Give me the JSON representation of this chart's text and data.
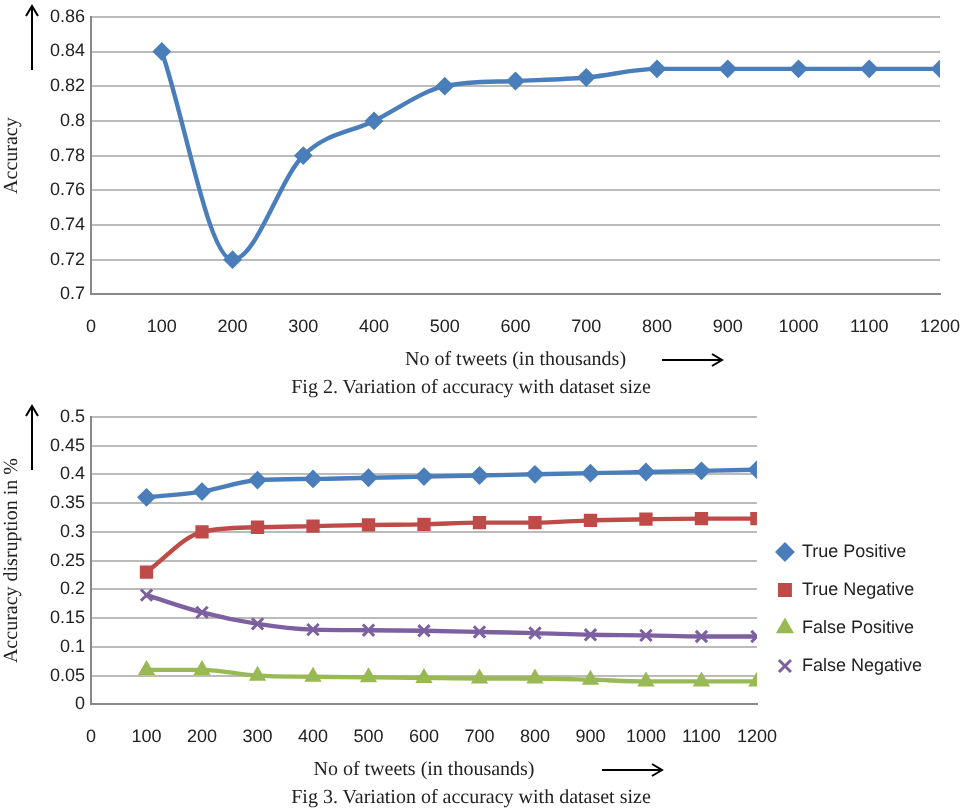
{
  "chart_data": [
    {
      "type": "line",
      "title": "Fig 2. Variation of accuracy with dataset size",
      "xlabel": "No of tweets (in thousands)",
      "ylabel": "Accuracy",
      "x": [
        100,
        200,
        300,
        400,
        500,
        600,
        700,
        800,
        900,
        1000,
        1100,
        1200
      ],
      "series": [
        {
          "color": "#4a7ebb",
          "values": [
            0.84,
            0.72,
            0.78,
            0.8,
            0.82,
            0.823,
            0.825,
            0.83,
            0.83,
            0.83,
            0.83,
            0.83
          ]
        }
      ],
      "xlim": [
        0,
        1200
      ],
      "xticks": [
        0,
        100,
        200,
        300,
        400,
        500,
        600,
        700,
        800,
        900,
        1000,
        1100,
        1200
      ],
      "ylim": [
        0.7,
        0.86
      ],
      "yticks": [
        0.7,
        0.72,
        0.74,
        0.76,
        0.78,
        0.8,
        0.82,
        0.84,
        0.86
      ],
      "grid": "y",
      "legend": false,
      "marker": "diamond"
    },
    {
      "type": "line",
      "title": "Fig 3. Variation of accuracy with dataset size",
      "xlabel": "No of tweets (in thousands)",
      "ylabel": "Accuracy disruption in %",
      "x": [
        100,
        200,
        300,
        400,
        500,
        600,
        700,
        800,
        900,
        1000,
        1100,
        1200
      ],
      "series": [
        {
          "name": "True Positive",
          "color": "#4a7ebb",
          "marker": "diamond",
          "values": [
            0.36,
            0.37,
            0.39,
            0.392,
            0.394,
            0.396,
            0.398,
            0.4,
            0.402,
            0.404,
            0.406,
            0.408
          ]
        },
        {
          "name": "True Negative",
          "color": "#be4b48",
          "marker": "square",
          "values": [
            0.23,
            0.3,
            0.308,
            0.31,
            0.312,
            0.313,
            0.316,
            0.316,
            0.32,
            0.322,
            0.323,
            0.323
          ]
        },
        {
          "name": "False Positive",
          "color": "#98b954",
          "marker": "triangle",
          "values": [
            0.06,
            0.06,
            0.05,
            0.048,
            0.047,
            0.046,
            0.045,
            0.045,
            0.043,
            0.04,
            0.04,
            0.04
          ]
        },
        {
          "name": "False Negative",
          "color": "#7d60a0",
          "marker": "cross",
          "values": [
            0.19,
            0.16,
            0.14,
            0.13,
            0.129,
            0.128,
            0.126,
            0.124,
            0.121,
            0.12,
            0.118,
            0.118
          ]
        }
      ],
      "xlim": [
        0,
        1200
      ],
      "xticks": [
        0,
        100,
        200,
        300,
        400,
        500,
        600,
        700,
        800,
        900,
        1000,
        1100,
        1200
      ],
      "ylim": [
        0,
        0.5
      ],
      "yticks": [
        0,
        0.05,
        0.1,
        0.15,
        0.2,
        0.25,
        0.3,
        0.35,
        0.4,
        0.45,
        0.5
      ],
      "grid": "y",
      "legend": "right"
    }
  ]
}
